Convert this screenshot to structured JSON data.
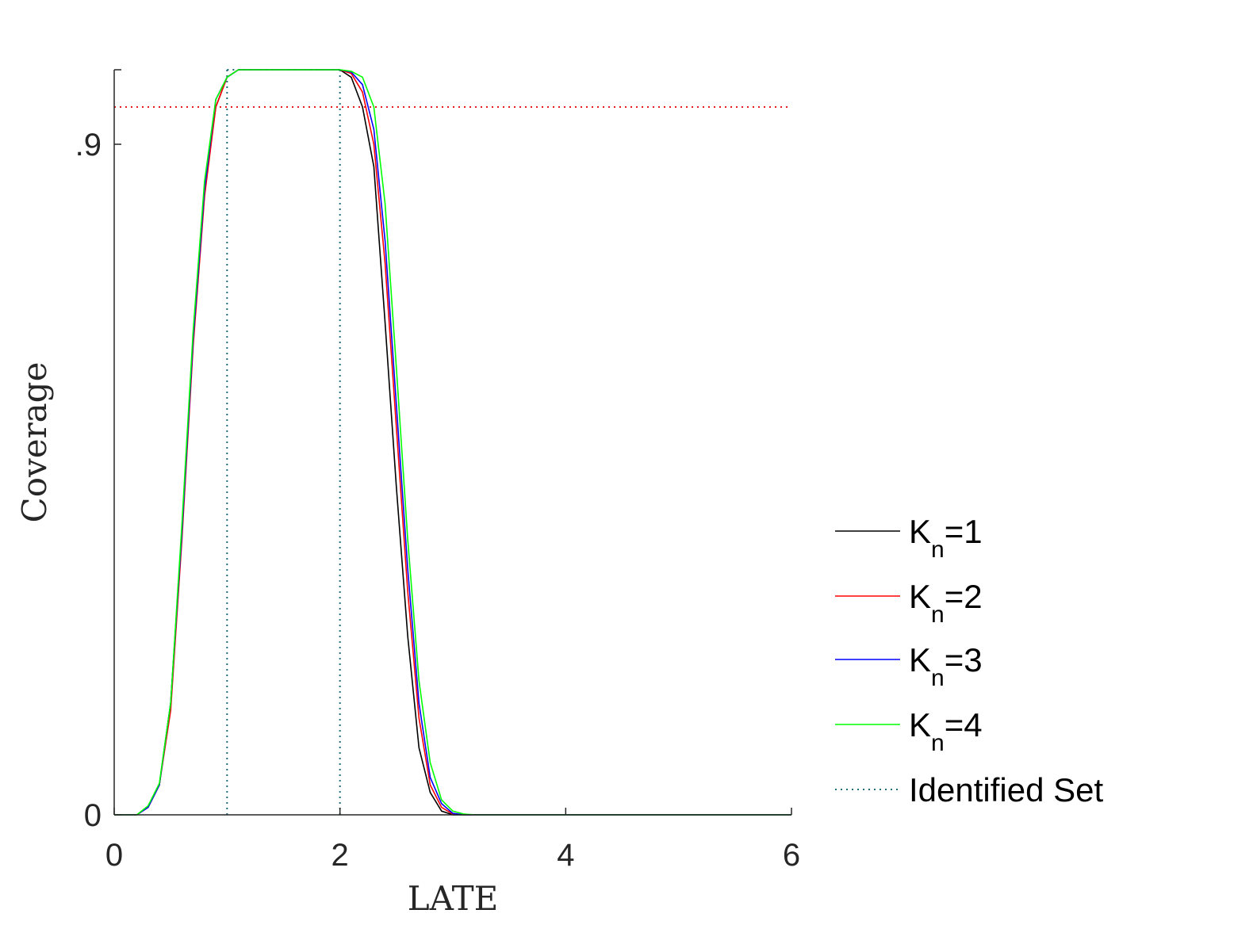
{
  "chart_data": {
    "type": "line",
    "title": "",
    "xlabel": "LATE",
    "ylabel": "Coverage",
    "xlim": [
      0,
      6
    ],
    "ylim": [
      0,
      1
    ],
    "xticks": [
      0,
      2,
      4,
      6
    ],
    "xtick_labels": [
      "0",
      "2",
      "4",
      "6"
    ],
    "yticks": [
      0,
      0.9
    ],
    "ytick_labels": [
      "0",
      ".9"
    ],
    "grid": false,
    "legend_position": "right",
    "reference_line": {
      "y": 0.95,
      "color": "#e41a1c",
      "style": "dotted"
    },
    "identified_set": {
      "x": [
        1,
        2
      ],
      "color": "#1f6f7a",
      "style": "dotted"
    },
    "x": [
      0,
      0.1,
      0.2,
      0.3,
      0.4,
      0.5,
      0.6,
      0.7,
      0.8,
      0.9,
      1.0,
      1.1,
      1.2,
      1.3,
      1.4,
      1.5,
      1.6,
      1.7,
      1.8,
      1.9,
      2.0,
      2.1,
      2.2,
      2.3,
      2.4,
      2.5,
      2.6,
      2.7,
      2.8,
      2.9,
      3.0,
      3.1,
      3.2,
      3.3,
      3.5,
      4.0,
      4.5,
      5.0,
      5.5,
      6.0
    ],
    "series": [
      {
        "name": "K_n=1",
        "legend_main": "K",
        "legend_sub": "n",
        "legend_tail": "=1",
        "color": "#000000",
        "values": [
          0,
          0,
          0,
          0.01,
          0.04,
          0.15,
          0.38,
          0.64,
          0.84,
          0.95,
          0.99,
          1,
          1,
          1,
          1,
          1,
          1,
          1,
          1,
          1,
          1,
          0.99,
          0.95,
          0.87,
          0.66,
          0.44,
          0.24,
          0.09,
          0.03,
          0.005,
          0,
          0,
          0,
          0,
          0,
          0,
          0,
          0,
          0,
          0
        ]
      },
      {
        "name": "K_n=2",
        "legend_main": "K",
        "legend_sub": "n",
        "legend_tail": "=2",
        "color": "#ff0000",
        "values": [
          0,
          0,
          0,
          0.01,
          0.04,
          0.14,
          0.37,
          0.63,
          0.83,
          0.95,
          0.99,
          1,
          1,
          1,
          1,
          1,
          1,
          1,
          1,
          1,
          1,
          0.995,
          0.97,
          0.9,
          0.74,
          0.52,
          0.3,
          0.13,
          0.04,
          0.01,
          0.001,
          0,
          0,
          0,
          0,
          0,
          0,
          0,
          0,
          0
        ]
      },
      {
        "name": "K_n=3",
        "legend_main": "K",
        "legend_sub": "n",
        "legend_tail": "=3",
        "color": "#0000ff",
        "values": [
          0,
          0,
          0,
          0.01,
          0.04,
          0.15,
          0.38,
          0.64,
          0.84,
          0.96,
          0.99,
          1,
          1,
          1,
          1,
          1,
          1,
          1,
          1,
          1,
          1,
          0.997,
          0.98,
          0.92,
          0.77,
          0.55,
          0.33,
          0.15,
          0.05,
          0.015,
          0.002,
          0,
          0,
          0,
          0,
          0,
          0,
          0,
          0,
          0
        ]
      },
      {
        "name": "K_n=4",
        "legend_main": "K",
        "legend_sub": "n",
        "legend_tail": "=4",
        "color": "#00ff00",
        "values": [
          0,
          0,
          0,
          0.012,
          0.042,
          0.15,
          0.39,
          0.65,
          0.85,
          0.96,
          0.99,
          1,
          1,
          1,
          1,
          1,
          1,
          1,
          1,
          1,
          1,
          0.998,
          0.99,
          0.95,
          0.82,
          0.6,
          0.37,
          0.18,
          0.07,
          0.02,
          0.005,
          0.001,
          0,
          0,
          0,
          0,
          0,
          0,
          0,
          0
        ]
      }
    ],
    "legend": [
      {
        "label": "K_n=1",
        "main": "K",
        "sub": "n",
        "tail": "=1",
        "color": "#000000",
        "style": "solid"
      },
      {
        "label": "K_n=2",
        "main": "K",
        "sub": "n",
        "tail": "=2",
        "color": "#ff0000",
        "style": "solid"
      },
      {
        "label": "K_n=3",
        "main": "K",
        "sub": "n",
        "tail": "=3",
        "color": "#0000ff",
        "style": "solid"
      },
      {
        "label": "K_n=4",
        "main": "K",
        "sub": "n",
        "tail": "=4",
        "color": "#00ff00",
        "style": "solid"
      },
      {
        "label": "Identified Set",
        "main": "Identified Set",
        "sub": "",
        "tail": "",
        "color": "#1f6f7a",
        "style": "dotted"
      }
    ]
  }
}
